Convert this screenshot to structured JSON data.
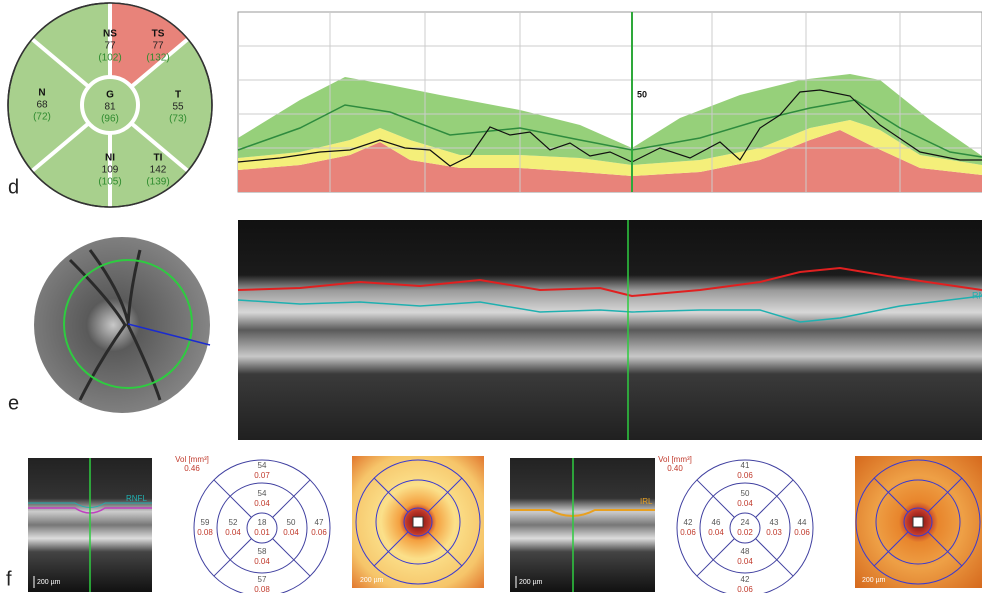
{
  "panel_labels": [
    "d",
    "e",
    "f"
  ],
  "sectors": [
    {
      "name": "NS",
      "value": "77",
      "reference": "(102)"
    },
    {
      "name": "TS",
      "value": "77",
      "reference": "(132)"
    },
    {
      "name": "N",
      "value": "68",
      "reference": "(72)"
    },
    {
      "name": "G",
      "value": "81",
      "reference": "(96)"
    },
    {
      "name": "T",
      "value": "55",
      "reference": "(73)"
    },
    {
      "name": "NI",
      "value": "109",
      "reference": "(105)"
    },
    {
      "name": "TI",
      "value": "142",
      "reference": "(139)"
    }
  ],
  "profile_chart": {
    "marker_label": "50"
  },
  "oct": {
    "layer_label": "RNFL"
  },
  "scans": [
    {
      "layer_label": "RNFL",
      "scale": "200 µm"
    },
    {
      "layer_label": "IRL",
      "scale": "200 µm"
    }
  ],
  "heatmaps": [
    {
      "scale": "200 µm"
    },
    {
      "scale": "200 µm"
    }
  ],
  "grids": [
    {
      "volume_label": "Vol [mm³]",
      "volume": "0.46",
      "center": {
        "thickness": "18",
        "volume": "0.01"
      },
      "inner": {
        "top": {
          "thickness": "54",
          "volume": "0.04"
        },
        "right": {
          "thickness": "50",
          "volume": "0.04"
        },
        "bottom": {
          "thickness": "58",
          "volume": "0.04"
        },
        "left": {
          "thickness": "52",
          "volume": "0.04"
        }
      },
      "outer": {
        "top": {
          "thickness": "54",
          "volume": "0.07"
        },
        "right": {
          "thickness": "47",
          "volume": "0.06"
        },
        "bottom": {
          "thickness": "57",
          "volume": "0.08"
        },
        "left": {
          "thickness": "59",
          "volume": "0.08"
        }
      }
    },
    {
      "volume_label": "Vol [mm³]",
      "volume": "0.40",
      "center": {
        "thickness": "24",
        "volume": "0.02"
      },
      "inner": {
        "top": {
          "thickness": "50",
          "volume": "0.04"
        },
        "right": {
          "thickness": "43",
          "volume": "0.03"
        },
        "bottom": {
          "thickness": "48",
          "volume": "0.04"
        },
        "left": {
          "thickness": "46",
          "volume": "0.04"
        }
      },
      "outer": {
        "top": {
          "thickness": "41",
          "volume": "0.06"
        },
        "right": {
          "thickness": "44",
          "volume": "0.06"
        },
        "bottom": {
          "thickness": "42",
          "volume": "0.06"
        },
        "left": {
          "thickness": "42",
          "volume": "0.06"
        }
      }
    }
  ]
}
